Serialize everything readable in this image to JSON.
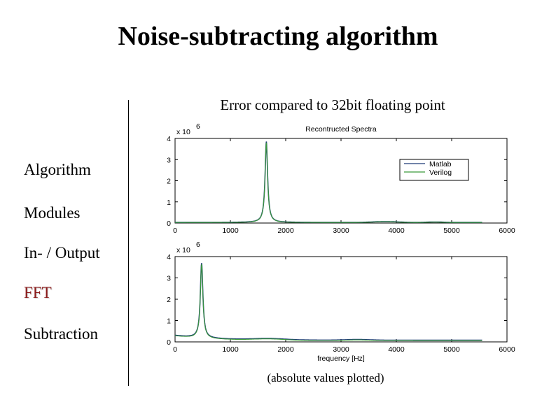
{
  "slide": {
    "title": "Noise-subtracting algorithm",
    "chart_title": "Error compared to 32bit floating point",
    "footnote": "(absolute values plotted)"
  },
  "nav": {
    "items": [
      {
        "label": "Algorithm",
        "active": false
      },
      {
        "label": "Modules",
        "active": false
      },
      {
        "label": "In- / Output",
        "active": false
      },
      {
        "label": "FFT",
        "active": true
      },
      {
        "label": "Subtraction",
        "active": false
      }
    ],
    "active_color": "#8b1a1a"
  },
  "colors": {
    "matlab": "#1f3a78",
    "verilog": "#3a9a3a"
  },
  "chart_data": [
    {
      "type": "line",
      "title": "Recontructed Spectra",
      "xlabel": "",
      "ylabel": "",
      "y_multiplier": "x 10",
      "y_exponent": "6",
      "xlim": [
        0,
        6000
      ],
      "ylim": [
        0,
        4
      ],
      "xticks": [
        "0",
        "1000",
        "2000",
        "3000",
        "4000",
        "5000",
        "6000"
      ],
      "yticks": [
        "0",
        "1",
        "2",
        "3",
        "4"
      ],
      "legend": {
        "position": "top-right",
        "entries": [
          "Matlab",
          "Verilog"
        ]
      },
      "series": [
        {
          "name": "Matlab",
          "peak_x": 1650,
          "peak_y": 3.85,
          "baseline_y": 0.03
        },
        {
          "name": "Verilog",
          "peak_x": 1650,
          "peak_y": 3.8,
          "baseline_y": 0.025
        }
      ]
    },
    {
      "type": "line",
      "title": "",
      "xlabel": "frequency [Hz]",
      "ylabel": "",
      "y_multiplier": "x 10",
      "y_exponent": "6",
      "xlim": [
        0,
        6000
      ],
      "ylim": [
        0,
        4
      ],
      "xticks": [
        "0",
        "1000",
        "2000",
        "3000",
        "4000",
        "5000",
        "6000"
      ],
      "yticks": [
        "0",
        "1",
        "2",
        "3",
        "4"
      ],
      "series": [
        {
          "name": "Matlab",
          "peak_x": 480,
          "peak_y": 3.8,
          "baseline_y": 0.3
        },
        {
          "name": "Verilog",
          "peak_x": 480,
          "peak_y": 3.75,
          "baseline_y": 0.28
        }
      ]
    }
  ]
}
